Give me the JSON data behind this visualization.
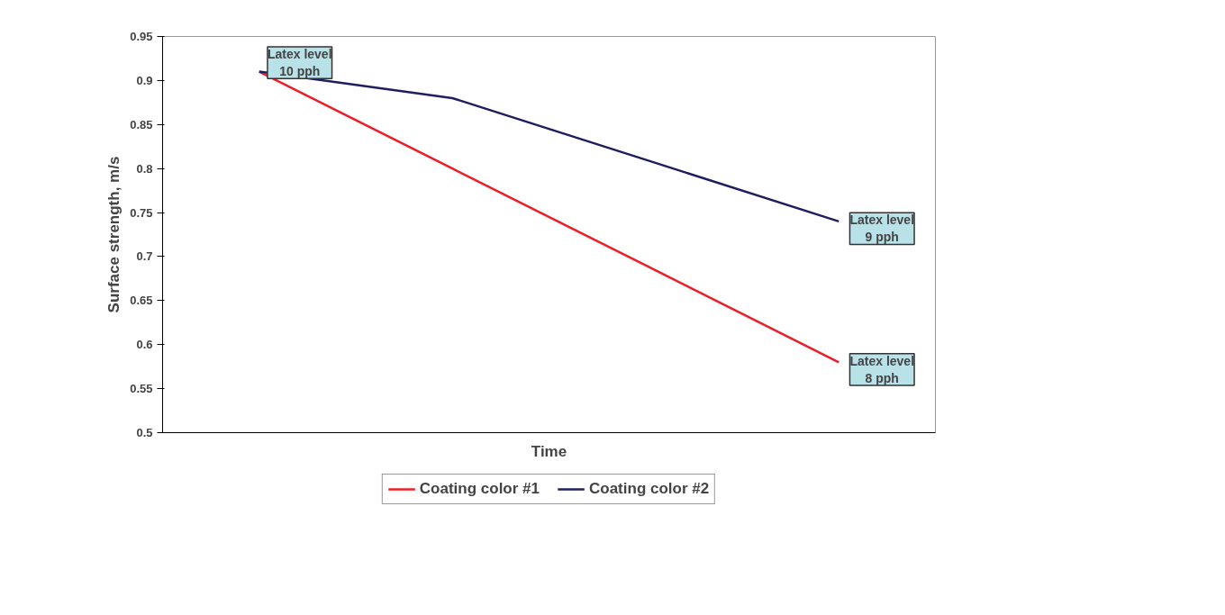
{
  "chart_data": {
    "type": "line",
    "xlabel": "Time",
    "ylabel": "Surface strength, m/s",
    "categories": [
      null,
      null,
      null,
      null
    ],
    "series": [
      {
        "name": "Coating color #1",
        "color": "#ee1c25",
        "values": [
          0.91,
          0.8,
          0.69,
          0.58
        ]
      },
      {
        "name": "Coating color #2",
        "color": "#1f1f5f",
        "values": [
          0.91,
          0.88,
          0.81,
          0.74
        ]
      }
    ],
    "ylim": [
      0.5,
      0.95
    ],
    "yticks": [
      0.5,
      0.55,
      0.6,
      0.65,
      0.7,
      0.75,
      0.8,
      0.85,
      0.9,
      0.95
    ],
    "tick_labels": "y",
    "grid": false,
    "legend": "bottom",
    "marker": "none",
    "line_style": "solid",
    "annotations": [
      "Latex level\n10 pph",
      "Latex level\n9 pph",
      "Latex level\n8 pph"
    ]
  }
}
